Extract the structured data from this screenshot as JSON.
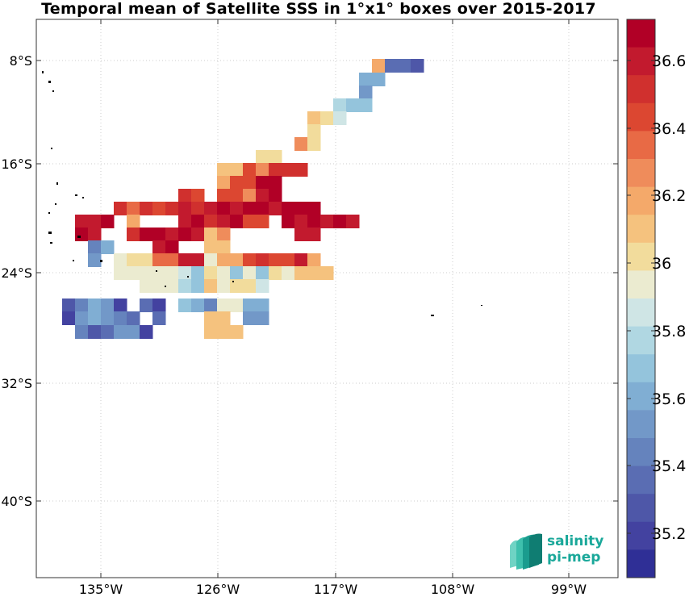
{
  "title": "Temporal mean of Satellite SSS in 1°x1° boxes over 2015-2017",
  "map": {
    "lat_labels": [
      "8°S",
      "16°S",
      "24°S",
      "32°S",
      "40°S"
    ],
    "lon_labels": [
      "135°W",
      "126°W",
      "117°W",
      "108°W",
      "99°W"
    ],
    "grid": true
  },
  "colorbar": {
    "labels": [
      "36.6",
      "36.4",
      "36.2",
      "36",
      "35.8",
      "35.6",
      "35.4",
      "35.2"
    ],
    "colors": [
      "#b10026",
      "#c21a2e",
      "#d0302e",
      "#dc4731",
      "#e86a45",
      "#ef8c5b",
      "#f4a96a",
      "#f5c27e",
      "#f2dc9c",
      "#ebebd0",
      "#cfe5e5",
      "#b0d7e2",
      "#94c4dc",
      "#80aed3",
      "#7298c8",
      "#6583bd",
      "#5a6db3",
      "#4e57a8",
      "#4342a0",
      "#2f2f96"
    ]
  },
  "logo": {
    "line1": "salinity",
    "line2": "pi-mep"
  }
}
